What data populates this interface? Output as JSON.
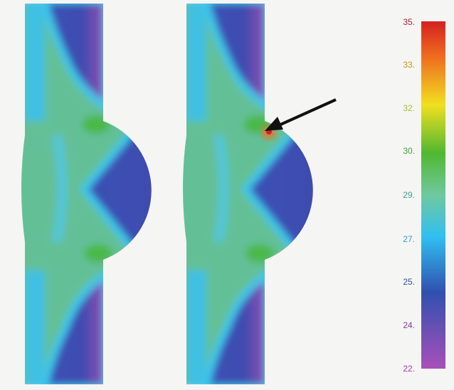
{
  "colorbar": {
    "labels": [
      "35.",
      "33.",
      "32.",
      "30.",
      "29.",
      "27.",
      "25.",
      "24.",
      "22."
    ]
  }
}
